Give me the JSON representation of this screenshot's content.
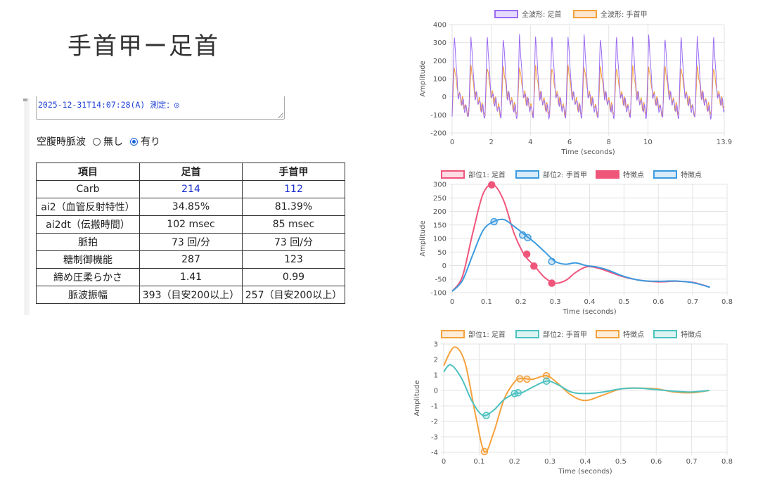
{
  "page": {
    "title": "手首甲ー足首"
  },
  "memo": {
    "text": "2025-12-31T14:07:28(A) 測定：◎"
  },
  "fasting": {
    "label": "空腹時脈波",
    "options": [
      "無し",
      "有り"
    ],
    "selected": "有り"
  },
  "table": {
    "headers": [
      "項目",
      "足首",
      "手首甲"
    ],
    "rows": [
      [
        "Carb",
        "214",
        "112"
      ],
      [
        "ai2（血管反射特性）",
        "34.85%",
        "81.39%"
      ],
      [
        "ai2dt（伝搬時間）",
        "102 msec",
        "85 msec"
      ],
      [
        "脈拍",
        "73 回/分",
        "73 回/分"
      ],
      [
        "糖制御機能",
        "287",
        "123"
      ],
      [
        "締め圧柔らかさ",
        "1.41",
        "0.99"
      ],
      [
        "脈波振幅",
        "393（目安200以上）",
        "257（目安200以上）"
      ]
    ]
  },
  "chart_data": [
    {
      "type": "line",
      "legend": [
        "全波形: 足首",
        "全波形: 手首甲"
      ],
      "colors": [
        "#9b6bf2",
        "#f5a13d"
      ],
      "xlabel": "Time (seconds)",
      "ylabel": "Amplitude",
      "xlim": [
        0,
        13.9
      ],
      "ylim": [
        -200,
        400
      ],
      "xticks": [
        "0",
        "2",
        "4",
        "6",
        "8",
        "10",
        "13.9"
      ],
      "xtick_values": [
        0,
        2,
        4,
        6,
        8,
        10,
        13.9
      ],
      "yticks": [
        400,
        300,
        200,
        100,
        0,
        -100,
        -200
      ],
      "beats": [
        0.05,
        0.9,
        1.73,
        2.55,
        3.38,
        4.2,
        5.03,
        5.86,
        6.68,
        7.51,
        8.33,
        9.16,
        9.98,
        10.81,
        11.63,
        12.46,
        13.29
      ],
      "peak_values": {
        "足首": 340,
        "手首甲": 170
      },
      "trough_values": {
        "足首": -110,
        "手首甲": -100
      }
    },
    {
      "type": "line",
      "legend": [
        "部位1: 足首",
        "部位2: 手首甲",
        "特徴点",
        "特徴点"
      ],
      "colors": [
        "#f0557a",
        "#3b9be0"
      ],
      "xlabel": "Time (seconds)",
      "ylabel": "Amplitude",
      "xlim": [
        0,
        0.8
      ],
      "ylim": [
        -100,
        300
      ],
      "xticks": [
        "0",
        "0.1",
        "0.2",
        "0.3",
        "0.4",
        "0.5",
        "0.6",
        "0.7",
        "0.8"
      ],
      "yticks": [
        300,
        250,
        200,
        150,
        100,
        50,
        0,
        -50,
        -100
      ],
      "series": [
        {
          "name": "部位1: 足首",
          "x": [
            0,
            0.03,
            0.06,
            0.09,
            0.12,
            0.15,
            0.18,
            0.21,
            0.24,
            0.27,
            0.3,
            0.33,
            0.36,
            0.39,
            0.42,
            0.45,
            0.5,
            0.55,
            0.6,
            0.65,
            0.7,
            0.75
          ],
          "y": [
            -95,
            -40,
            120,
            265,
            298,
            240,
            120,
            40,
            -2,
            -45,
            -65,
            -55,
            -25,
            -5,
            -8,
            -20,
            -42,
            -55,
            -60,
            -58,
            -62,
            -80
          ]
        },
        {
          "name": "部位2: 手首甲",
          "x": [
            0,
            0.03,
            0.06,
            0.09,
            0.12,
            0.15,
            0.18,
            0.21,
            0.24,
            0.27,
            0.3,
            0.33,
            0.36,
            0.39,
            0.42,
            0.45,
            0.5,
            0.55,
            0.6,
            0.65,
            0.7,
            0.75
          ],
          "y": [
            -95,
            -55,
            40,
            130,
            162,
            170,
            145,
            115,
            85,
            50,
            15,
            5,
            10,
            0,
            -5,
            -15,
            -40,
            -55,
            -58,
            -57,
            -63,
            -80
          ]
        }
      ],
      "points": [
        {
          "series": 0,
          "x": [
            0.115,
            0.217,
            0.238,
            0.29
          ],
          "y": [
            298,
            42,
            -2,
            -65
          ],
          "filled": true
        },
        {
          "series": 1,
          "x": [
            0.122,
            0.205,
            0.22,
            0.29
          ],
          "y": [
            162,
            113,
            103,
            15
          ],
          "filled": false
        }
      ]
    },
    {
      "type": "line",
      "legend": [
        "部位1: 足首",
        "部位2: 手首甲",
        "特徴点",
        "特徴点"
      ],
      "colors": [
        "#f5a13d",
        "#4cc2c0"
      ],
      "xlabel": "Time (seconds)",
      "ylabel": "Amplitude",
      "xlim": [
        0,
        0.8
      ],
      "ylim": [
        -4,
        3
      ],
      "xticks": [
        "0",
        "0.1",
        "0.2",
        "0.3",
        "0.4",
        "0.5",
        "0.6",
        "0.7",
        "0.8"
      ],
      "yticks": [
        3,
        2,
        1,
        0,
        -1,
        -2,
        -3,
        -4
      ],
      "series": [
        {
          "name": "部位1: 足首",
          "x": [
            0,
            0.03,
            0.06,
            0.09,
            0.115,
            0.14,
            0.17,
            0.2,
            0.22,
            0.25,
            0.29,
            0.32,
            0.36,
            0.4,
            0.45,
            0.5,
            0.55,
            0.6,
            0.65,
            0.7,
            0.75
          ],
          "y": [
            1.6,
            2.8,
            1.8,
            -1.6,
            -3.95,
            -2.8,
            -0.6,
            0.55,
            0.78,
            0.72,
            0.95,
            0.5,
            -0.3,
            -0.65,
            -0.3,
            0.1,
            0.15,
            0.1,
            -0.1,
            -0.15,
            0
          ]
        },
        {
          "name": "部位2: 手首甲",
          "x": [
            0,
            0.02,
            0.05,
            0.08,
            0.11,
            0.14,
            0.17,
            0.2,
            0.22,
            0.25,
            0.29,
            0.32,
            0.36,
            0.4,
            0.45,
            0.5,
            0.55,
            0.6,
            0.65,
            0.7,
            0.75
          ],
          "y": [
            1.2,
            1.65,
            0.8,
            -0.7,
            -1.6,
            -1.3,
            -0.6,
            -0.2,
            -0.15,
            0.2,
            0.6,
            0.4,
            -0.1,
            -0.2,
            -0.1,
            0.1,
            0.15,
            0.05,
            -0.05,
            -0.1,
            0
          ]
        }
      ],
      "points": [
        {
          "series": 0,
          "x": [
            0.115,
            0.215,
            0.235,
            0.29
          ],
          "y": [
            -3.95,
            0.75,
            0.73,
            0.95
          ],
          "filled": false
        },
        {
          "series": 1,
          "x": [
            0.12,
            0.2,
            0.21,
            0.29
          ],
          "y": [
            -1.62,
            -0.2,
            -0.15,
            0.6
          ],
          "filled": false
        }
      ]
    }
  ]
}
